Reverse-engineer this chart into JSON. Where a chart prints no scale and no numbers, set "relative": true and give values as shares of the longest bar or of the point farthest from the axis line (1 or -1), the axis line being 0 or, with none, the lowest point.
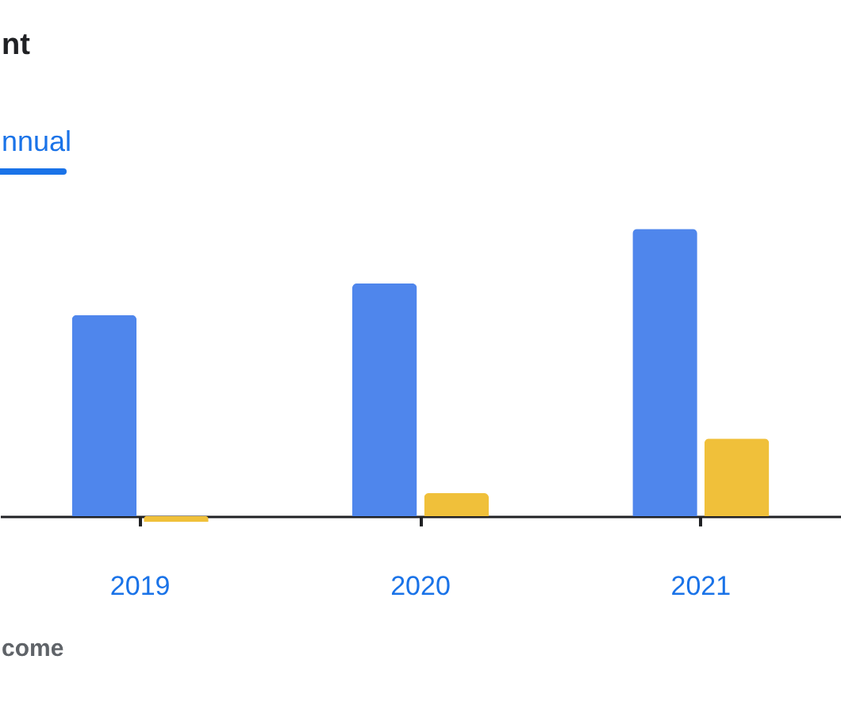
{
  "chart_data": {
    "type": "bar",
    "title": "nt",
    "annotations": [
      "nnual",
      "come"
    ],
    "categories": [
      "2019",
      "2020",
      "2021"
    ],
    "relative": true,
    "series": [
      {
        "color": "#4f86ec",
        "values": [
          0.7,
          0.81,
          1
        ]
      },
      {
        "color": "#f0c03a",
        "values": [
          -0.02,
          0.08,
          0.27
        ]
      }
    ]
  }
}
